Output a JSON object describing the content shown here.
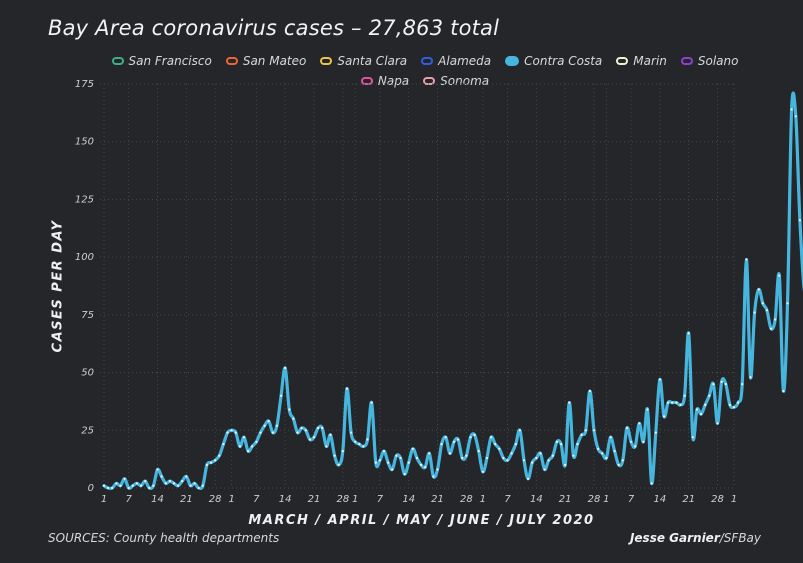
{
  "header": {
    "title": "Bay Area coronavirus cases – 27,863 total"
  },
  "footer": {
    "sources": "SOURCES: County health departments",
    "author": "Jesse Garnier",
    "outlet": "/SFBay"
  },
  "legend": [
    {
      "label": "San Francisco",
      "color": "#3fae86",
      "active": false
    },
    {
      "label": "San Mateo",
      "color": "#e8663a",
      "active": false
    },
    {
      "label": "Santa Clara",
      "color": "#e8c44a",
      "active": false
    },
    {
      "label": "Alameda",
      "color": "#2f5fe0",
      "active": false
    },
    {
      "label": "Contra Costa",
      "color": "#46b6df",
      "active": true
    },
    {
      "label": "Marin",
      "color": "#f1f0cf",
      "active": false
    },
    {
      "label": "Solano",
      "color": "#8f3ecf",
      "active": false
    },
    {
      "label": "Napa",
      "color": "#e0569a",
      "active": false
    },
    {
      "label": "Sonoma",
      "color": "#e8a0a8",
      "active": false
    }
  ],
  "chart_data": {
    "type": "line",
    "xlabel": "MARCH / APRIL / MAY / JUNE / JULY 2020",
    "ylabel": "CASES PER DAY",
    "ylim": [
      0,
      175
    ],
    "yticks": [
      0,
      25,
      50,
      75,
      100,
      125,
      150,
      175
    ],
    "grid": true,
    "legend_position": "top",
    "x_start": "2020-03-01",
    "x_end": "2020-08-01",
    "x_ticks": [
      {
        "label": "1",
        "date": "2020-03-01"
      },
      {
        "label": "7",
        "date": "2020-03-07"
      },
      {
        "label": "14",
        "date": "2020-03-14"
      },
      {
        "label": "21",
        "date": "2020-03-21"
      },
      {
        "label": "28",
        "date": "2020-03-28"
      },
      {
        "label": "1",
        "date": "2020-04-01"
      },
      {
        "label": "7",
        "date": "2020-04-07"
      },
      {
        "label": "14",
        "date": "2020-04-14"
      },
      {
        "label": "21",
        "date": "2020-04-21"
      },
      {
        "label": "28",
        "date": "2020-04-28"
      },
      {
        "label": "1",
        "date": "2020-05-01"
      },
      {
        "label": "7",
        "date": "2020-05-07"
      },
      {
        "label": "14",
        "date": "2020-05-14"
      },
      {
        "label": "21",
        "date": "2020-05-21"
      },
      {
        "label": "28",
        "date": "2020-05-28"
      },
      {
        "label": "1",
        "date": "2020-06-01"
      },
      {
        "label": "7",
        "date": "2020-06-07"
      },
      {
        "label": "14",
        "date": "2020-06-14"
      },
      {
        "label": "21",
        "date": "2020-06-21"
      },
      {
        "label": "28",
        "date": "2020-06-28"
      },
      {
        "label": "1",
        "date": "2020-07-01"
      },
      {
        "label": "7",
        "date": "2020-07-07"
      },
      {
        "label": "14",
        "date": "2020-07-14"
      },
      {
        "label": "21",
        "date": "2020-07-21"
      },
      {
        "label": "28",
        "date": "2020-07-28"
      },
      {
        "label": "1",
        "date": "2020-08-01"
      }
    ],
    "series": [
      {
        "name": "Contra Costa",
        "color": "#46b6df",
        "values": [
          1,
          0,
          0,
          2,
          1,
          4,
          0,
          1,
          2,
          1,
          3,
          0,
          1,
          8,
          5,
          2,
          3,
          2,
          1,
          3,
          5,
          1,
          2,
          0,
          1,
          10,
          11,
          12,
          14,
          19,
          24,
          25,
          24,
          18,
          22,
          16,
          18,
          20,
          24,
          27,
          29,
          24,
          27,
          40,
          52,
          34,
          30,
          24,
          26,
          25,
          21,
          22,
          26,
          26,
          18,
          23,
          14,
          10,
          16,
          43,
          24,
          20,
          19,
          18,
          21,
          37,
          11,
          12,
          16,
          11,
          8,
          14,
          13,
          6,
          11,
          17,
          13,
          10,
          9,
          15,
          5,
          8,
          19,
          22,
          15,
          20,
          21,
          13,
          14,
          22,
          23,
          16,
          7,
          13,
          22,
          19,
          17,
          13,
          12,
          15,
          19,
          25,
          12,
          4,
          11,
          13,
          15,
          8,
          12,
          14,
          20,
          19,
          10,
          37,
          14,
          19,
          23,
          25,
          42,
          25,
          17,
          15,
          13,
          22,
          16,
          10,
          12,
          26,
          20,
          18,
          28,
          20,
          34,
          2,
          24,
          47,
          31,
          37,
          37,
          37,
          36,
          40,
          67,
          22,
          34,
          32,
          36,
          40,
          45,
          28,
          46,
          45,
          36,
          35,
          37,
          45,
          99,
          48,
          76,
          86,
          80,
          77,
          69,
          73,
          92,
          42,
          80,
          164,
          161,
          116,
          87,
          85,
          101
        ]
      }
    ]
  }
}
